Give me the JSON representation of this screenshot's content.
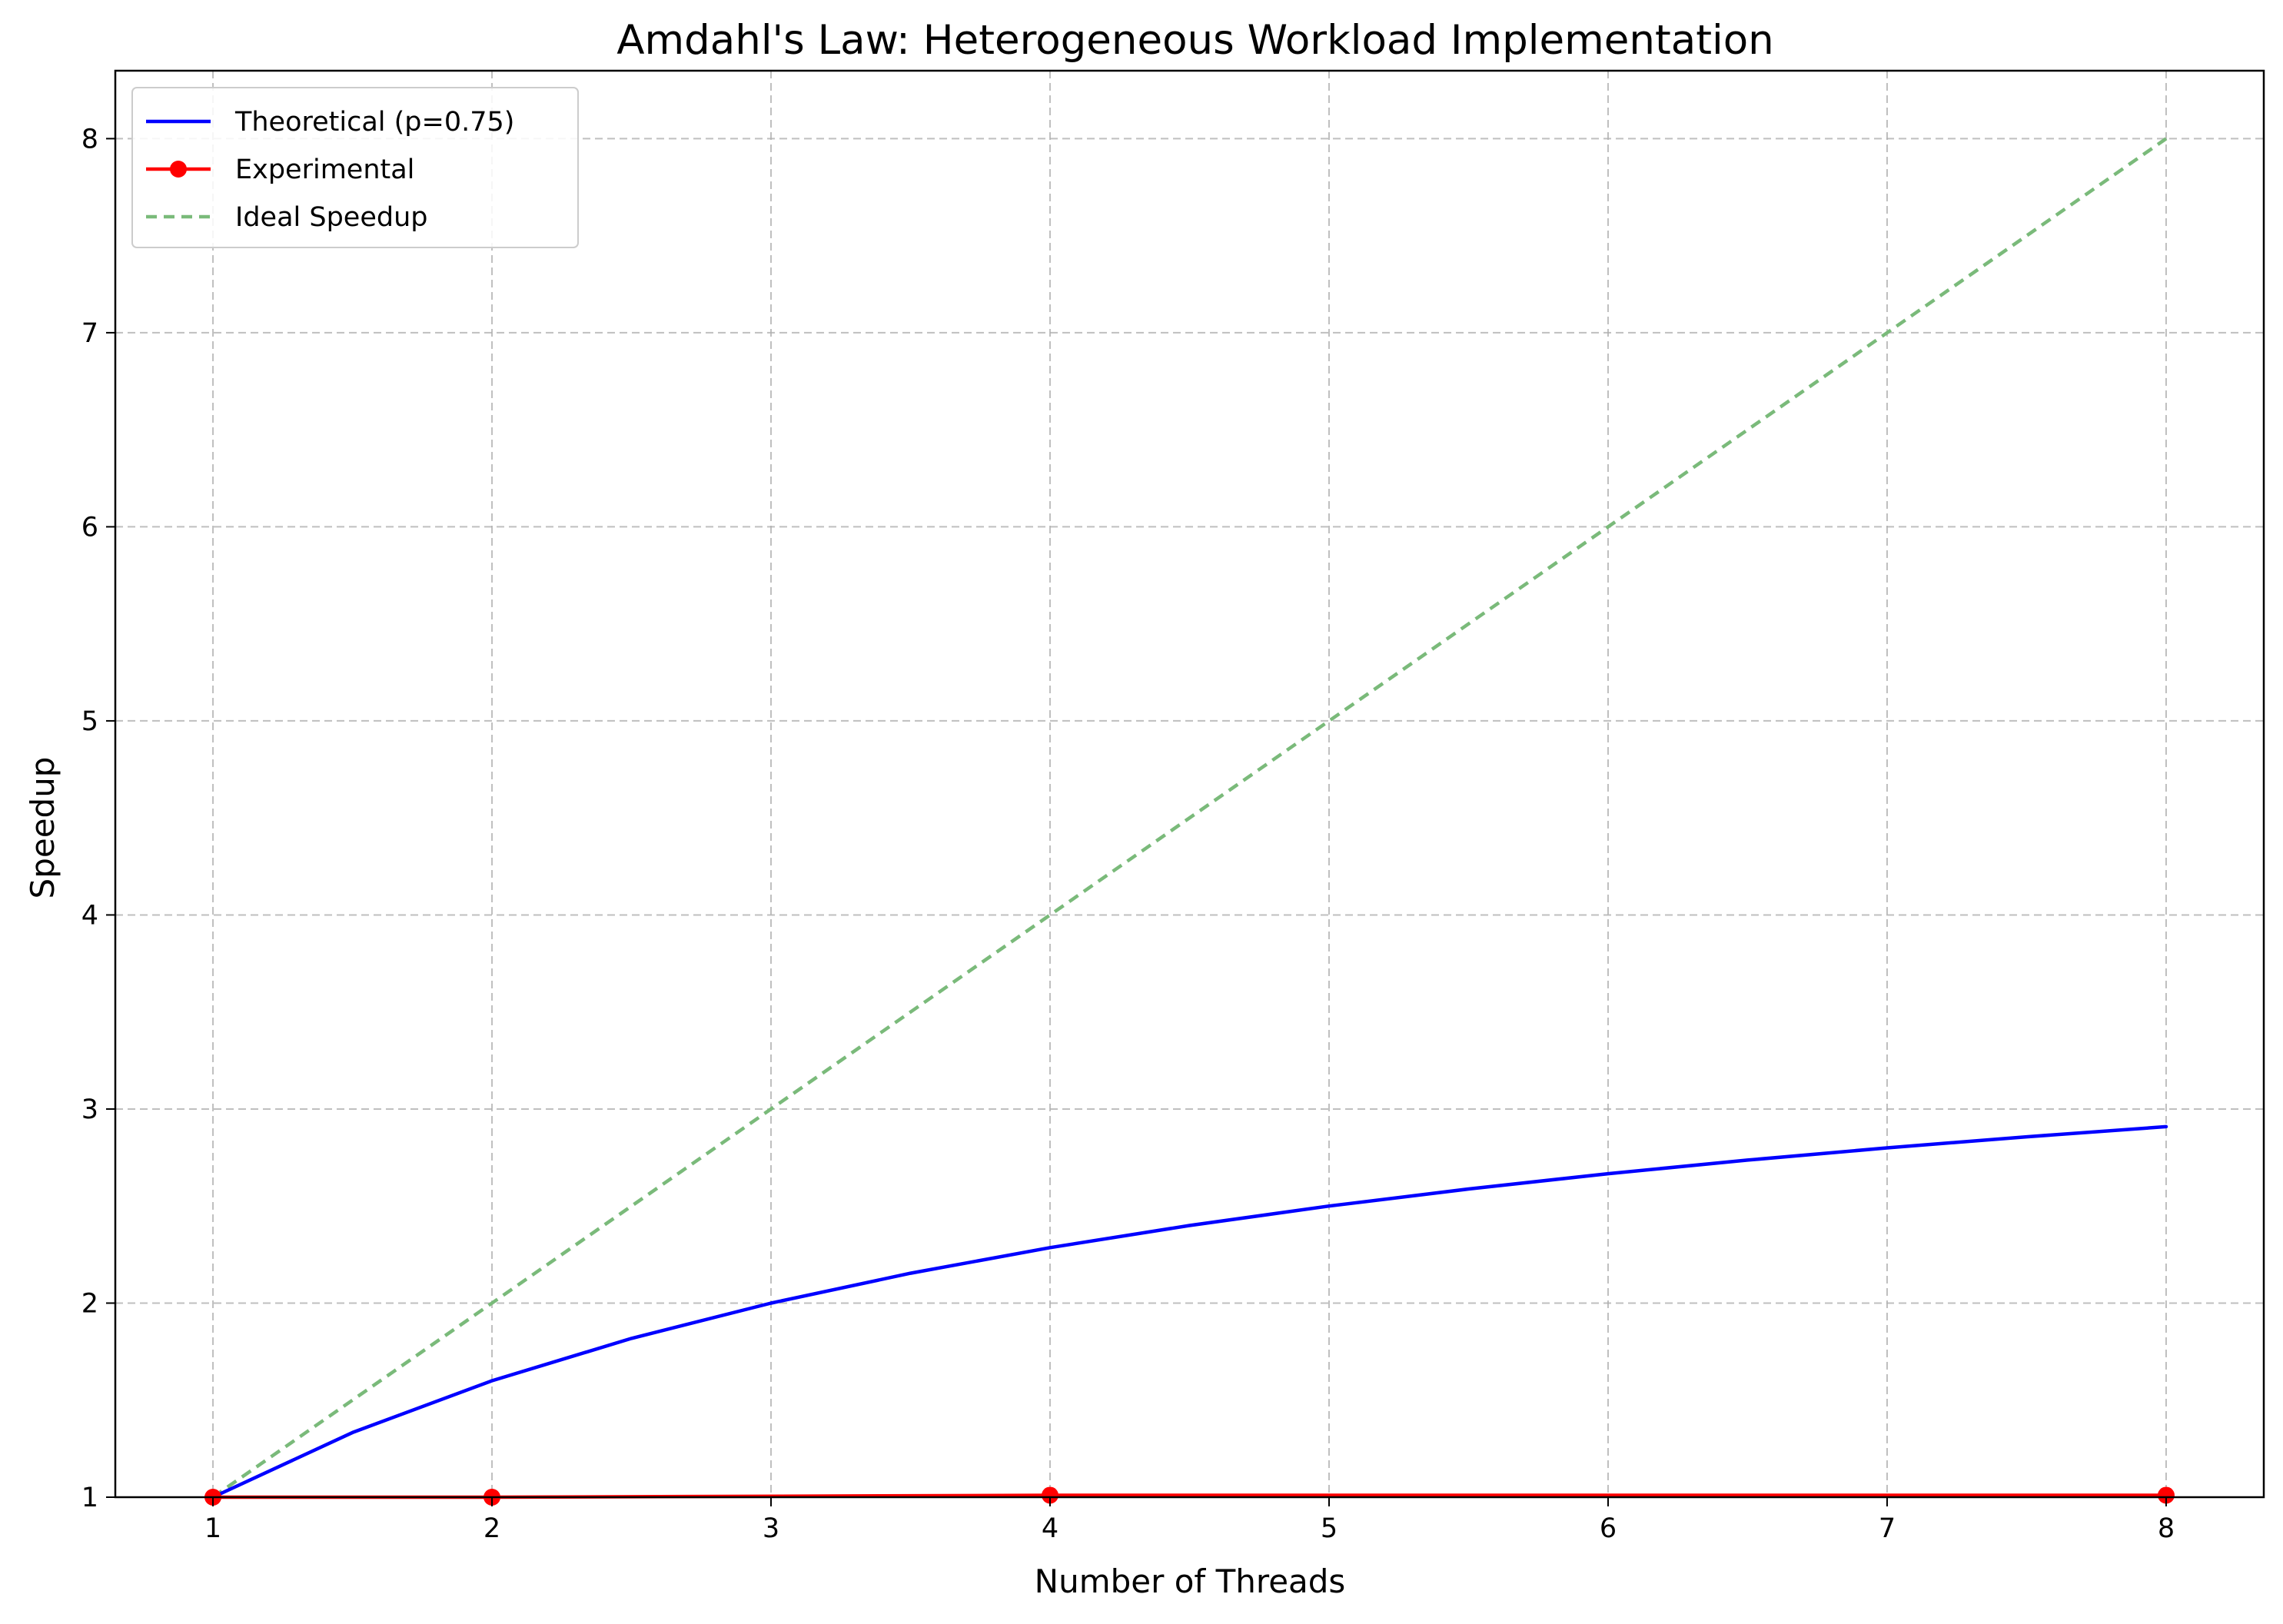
{
  "chart_data": {
    "type": "line",
    "title": "Amdahl's Law: Heterogeneous Workload Implementation",
    "xlabel": "Number of Threads",
    "ylabel": "Speedup",
    "xlim": [
      0.65,
      8.35
    ],
    "ylim": [
      1,
      8.35
    ],
    "xticks": [
      "1",
      "2",
      "3",
      "4",
      "5",
      "6",
      "7",
      "8"
    ],
    "yticks": [
      "1",
      "2",
      "3",
      "4",
      "5",
      "6",
      "7",
      "8"
    ],
    "grid": true,
    "legend_position": "top-left",
    "series": [
      {
        "name": "Theoretical (p=0.75)",
        "style": "solid",
        "color": "#0000ff",
        "x": [
          1,
          1.5,
          2,
          2.5,
          3,
          3.5,
          4,
          4.5,
          5,
          5.5,
          6,
          6.5,
          7,
          7.5,
          8
        ],
        "y": [
          1.0,
          1.333,
          1.6,
          1.818,
          2.0,
          2.154,
          2.286,
          2.4,
          2.5,
          2.588,
          2.667,
          2.737,
          2.8,
          2.857,
          2.909
        ]
      },
      {
        "name": "Experimental",
        "style": "solid-markers",
        "color": "#ff0000",
        "x": [
          1,
          2,
          4,
          8
        ],
        "y": [
          1.0,
          1.0,
          1.01,
          1.01
        ]
      },
      {
        "name": "Ideal Speedup",
        "style": "dashed",
        "color": "#7aba7a",
        "x": [
          1,
          8
        ],
        "y": [
          1,
          8
        ]
      }
    ]
  }
}
